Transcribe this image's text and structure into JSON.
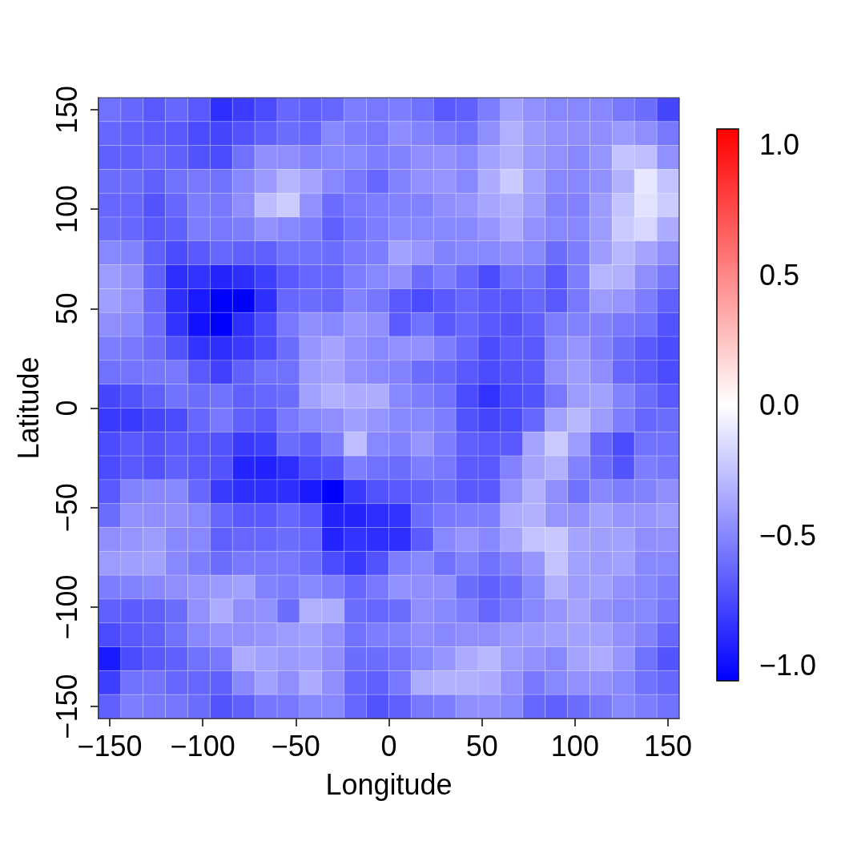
{
  "chart_data": {
    "type": "heatmap",
    "xlabel": "Longitude",
    "ylabel": "Latitude",
    "x": [
      -150,
      -138,
      -126,
      -114,
      -102,
      -90,
      -78,
      -66,
      -54,
      -42,
      -30,
      -18,
      -6,
      6,
      18,
      30,
      42,
      54,
      66,
      78,
      90,
      102,
      114,
      126,
      138,
      150
    ],
    "y": [
      150,
      138,
      126,
      114,
      102,
      90,
      78,
      66,
      54,
      42,
      30,
      18,
      6,
      -6,
      -18,
      -30,
      -42,
      -54,
      -66,
      -78,
      -90,
      -102,
      -114,
      -126,
      -138,
      -150
    ],
    "xlim": [
      -156,
      156
    ],
    "ylim": [
      -156,
      156
    ],
    "xticks": [
      {
        "value": -150,
        "label": "−150"
      },
      {
        "value": -100,
        "label": "−100"
      },
      {
        "value": -50,
        "label": "−50"
      },
      0,
      50,
      100,
      150
    ],
    "yticks": [
      {
        "value": -150,
        "label": "−150"
      },
      {
        "value": -100,
        "label": "−100"
      },
      {
        "value": -50,
        "label": "−50"
      },
      0,
      50,
      100,
      150
    ],
    "clim": [
      -1.06,
      1.06
    ],
    "cticks": [
      {
        "value": -1,
        "label": "−1.0"
      },
      {
        "value": -0.5,
        "label": "−0.5"
      },
      {
        "value": 0,
        "label": "0.0"
      },
      0.5,
      {
        "value": 1,
        "label": "1.0"
      }
    ],
    "cells": [
      [
        -0.59,
        -0.63,
        -0.69,
        -0.63,
        -0.69,
        -0.87,
        -0.81,
        -0.75,
        -0.63,
        -0.66,
        -0.63,
        -0.54,
        -0.56,
        -0.54,
        -0.59,
        -0.69,
        -0.66,
        -0.54,
        -0.39,
        -0.46,
        -0.5,
        -0.5,
        -0.5,
        -0.56,
        -0.61,
        -0.77
      ],
      [
        -0.63,
        -0.66,
        -0.68,
        -0.69,
        -0.75,
        -0.77,
        -0.72,
        -0.66,
        -0.61,
        -0.63,
        -0.5,
        -0.54,
        -0.56,
        -0.48,
        -0.52,
        -0.56,
        -0.59,
        -0.47,
        -0.33,
        -0.42,
        -0.46,
        -0.47,
        -0.47,
        -0.42,
        -0.47,
        -0.56
      ],
      [
        -0.66,
        -0.66,
        -0.63,
        -0.66,
        -0.72,
        -0.75,
        -0.59,
        -0.47,
        -0.47,
        -0.52,
        -0.5,
        -0.5,
        -0.54,
        -0.52,
        -0.47,
        -0.46,
        -0.5,
        -0.39,
        -0.33,
        -0.42,
        -0.46,
        -0.5,
        -0.44,
        -0.25,
        -0.27,
        -0.46
      ],
      [
        -0.61,
        -0.61,
        -0.66,
        -0.59,
        -0.56,
        -0.59,
        -0.5,
        -0.42,
        -0.31,
        -0.38,
        -0.5,
        -0.56,
        -0.63,
        -0.52,
        -0.46,
        -0.44,
        -0.5,
        -0.35,
        -0.22,
        -0.39,
        -0.5,
        -0.5,
        -0.46,
        -0.33,
        -0.1,
        -0.25
      ],
      [
        -0.63,
        -0.63,
        -0.71,
        -0.63,
        -0.54,
        -0.56,
        -0.47,
        -0.28,
        -0.21,
        -0.46,
        -0.61,
        -0.56,
        -0.54,
        -0.52,
        -0.52,
        -0.47,
        -0.44,
        -0.37,
        -0.33,
        -0.41,
        -0.52,
        -0.52,
        -0.41,
        -0.25,
        -0.12,
        -0.21
      ],
      [
        -0.61,
        -0.63,
        -0.69,
        -0.66,
        -0.54,
        -0.56,
        -0.54,
        -0.46,
        -0.5,
        -0.54,
        -0.66,
        -0.59,
        -0.54,
        -0.5,
        -0.5,
        -0.5,
        -0.5,
        -0.44,
        -0.35,
        -0.46,
        -0.5,
        -0.5,
        -0.41,
        -0.22,
        -0.17,
        -0.35
      ],
      [
        -0.5,
        -0.52,
        -0.66,
        -0.75,
        -0.69,
        -0.63,
        -0.66,
        -0.66,
        -0.59,
        -0.59,
        -0.61,
        -0.56,
        -0.54,
        -0.39,
        -0.44,
        -0.52,
        -0.5,
        -0.5,
        -0.47,
        -0.5,
        -0.61,
        -0.54,
        -0.41,
        -0.3,
        -0.38,
        -0.47
      ],
      [
        -0.41,
        -0.47,
        -0.66,
        -0.87,
        -0.85,
        -0.91,
        -0.87,
        -0.8,
        -0.69,
        -0.63,
        -0.63,
        -0.54,
        -0.5,
        -0.47,
        -0.61,
        -0.54,
        -0.63,
        -0.75,
        -0.59,
        -0.59,
        -0.69,
        -0.54,
        -0.31,
        -0.33,
        -0.47,
        -0.56
      ],
      [
        -0.4,
        -0.46,
        -0.63,
        -0.87,
        -0.95,
        -1.06,
        -1.06,
        -0.87,
        -0.63,
        -0.61,
        -0.63,
        -0.52,
        -0.57,
        -0.69,
        -0.75,
        -0.69,
        -0.63,
        -0.69,
        -0.69,
        -0.63,
        -0.69,
        -0.56,
        -0.41,
        -0.44,
        -0.54,
        -0.66
      ],
      [
        -0.47,
        -0.5,
        -0.61,
        -0.85,
        -0.99,
        -1.06,
        -0.87,
        -0.75,
        -0.56,
        -0.47,
        -0.5,
        -0.44,
        -0.47,
        -0.68,
        -0.59,
        -0.69,
        -0.63,
        -0.69,
        -0.71,
        -0.66,
        -0.54,
        -0.52,
        -0.52,
        -0.56,
        -0.59,
        -0.72
      ],
      [
        -0.54,
        -0.56,
        -0.61,
        -0.72,
        -0.85,
        -0.87,
        -0.82,
        -0.75,
        -0.61,
        -0.44,
        -0.38,
        -0.46,
        -0.5,
        -0.46,
        -0.46,
        -0.54,
        -0.63,
        -0.75,
        -0.68,
        -0.69,
        -0.5,
        -0.44,
        -0.52,
        -0.61,
        -0.69,
        -0.75
      ],
      [
        -0.59,
        -0.58,
        -0.57,
        -0.56,
        -0.69,
        -0.79,
        -0.66,
        -0.59,
        -0.59,
        -0.41,
        -0.38,
        -0.46,
        -0.5,
        -0.52,
        -0.61,
        -0.63,
        -0.69,
        -0.75,
        -0.71,
        -0.69,
        -0.47,
        -0.41,
        -0.47,
        -0.63,
        -0.68,
        -0.75
      ],
      [
        -0.77,
        -0.72,
        -0.66,
        -0.59,
        -0.61,
        -0.59,
        -0.66,
        -0.63,
        -0.61,
        -0.39,
        -0.33,
        -0.35,
        -0.34,
        -0.5,
        -0.54,
        -0.59,
        -0.75,
        -0.85,
        -0.75,
        -0.72,
        -0.56,
        -0.41,
        -0.39,
        -0.52,
        -0.61,
        -0.69
      ],
      [
        -0.82,
        -0.82,
        -0.77,
        -0.75,
        -0.63,
        -0.56,
        -0.66,
        -0.69,
        -0.56,
        -0.5,
        -0.47,
        -0.4,
        -0.44,
        -0.5,
        -0.5,
        -0.54,
        -0.72,
        -0.77,
        -0.75,
        -0.63,
        -0.39,
        -0.3,
        -0.41,
        -0.54,
        -0.63,
        -0.61
      ],
      [
        -0.75,
        -0.69,
        -0.72,
        -0.68,
        -0.69,
        -0.72,
        -0.82,
        -0.8,
        -0.61,
        -0.66,
        -0.54,
        -0.27,
        -0.5,
        -0.52,
        -0.44,
        -0.54,
        -0.66,
        -0.69,
        -0.69,
        -0.38,
        -0.22,
        -0.41,
        -0.63,
        -0.75,
        -0.59,
        -0.59
      ],
      [
        -0.75,
        -0.69,
        -0.72,
        -0.66,
        -0.69,
        -0.72,
        -0.91,
        -0.92,
        -0.87,
        -0.75,
        -0.71,
        -0.54,
        -0.59,
        -0.61,
        -0.54,
        -0.56,
        -0.68,
        -0.69,
        -0.52,
        -0.38,
        -0.33,
        -0.52,
        -0.61,
        -0.71,
        -0.54,
        -0.57
      ],
      [
        -0.69,
        -0.52,
        -0.5,
        -0.5,
        -0.63,
        -0.82,
        -0.87,
        -0.87,
        -0.87,
        -0.95,
        -1.06,
        -0.82,
        -0.72,
        -0.69,
        -0.66,
        -0.61,
        -0.69,
        -0.69,
        -0.46,
        -0.33,
        -0.47,
        -0.59,
        -0.5,
        -0.54,
        -0.52,
        -0.47
      ],
      [
        -0.61,
        -0.46,
        -0.47,
        -0.47,
        -0.5,
        -0.63,
        -0.69,
        -0.69,
        -0.63,
        -0.69,
        -0.92,
        -0.91,
        -0.87,
        -0.85,
        -0.61,
        -0.56,
        -0.54,
        -0.54,
        -0.35,
        -0.33,
        -0.44,
        -0.46,
        -0.39,
        -0.44,
        -0.44,
        -0.41
      ],
      [
        -0.47,
        -0.44,
        -0.41,
        -0.5,
        -0.5,
        -0.66,
        -0.63,
        -0.63,
        -0.61,
        -0.63,
        -0.91,
        -0.85,
        -0.87,
        -0.87,
        -0.68,
        -0.5,
        -0.44,
        -0.5,
        -0.38,
        -0.25,
        -0.23,
        -0.38,
        -0.4,
        -0.39,
        -0.47,
        -0.46
      ],
      [
        -0.41,
        -0.4,
        -0.39,
        -0.5,
        -0.54,
        -0.61,
        -0.56,
        -0.56,
        -0.56,
        -0.61,
        -0.75,
        -0.82,
        -0.72,
        -0.54,
        -0.5,
        -0.59,
        -0.52,
        -0.59,
        -0.52,
        -0.44,
        -0.25,
        -0.39,
        -0.41,
        -0.39,
        -0.5,
        -0.5
      ],
      [
        -0.54,
        -0.52,
        -0.5,
        -0.47,
        -0.44,
        -0.42,
        -0.39,
        -0.52,
        -0.54,
        -0.5,
        -0.54,
        -0.63,
        -0.56,
        -0.46,
        -0.47,
        -0.47,
        -0.61,
        -0.66,
        -0.61,
        -0.5,
        -0.33,
        -0.41,
        -0.39,
        -0.46,
        -0.5,
        -0.54
      ],
      [
        -0.66,
        -0.68,
        -0.66,
        -0.61,
        -0.46,
        -0.35,
        -0.47,
        -0.46,
        -0.61,
        -0.33,
        -0.34,
        -0.61,
        -0.63,
        -0.61,
        -0.47,
        -0.5,
        -0.54,
        -0.63,
        -0.56,
        -0.5,
        -0.44,
        -0.38,
        -0.46,
        -0.5,
        -0.5,
        -0.57
      ],
      [
        -0.75,
        -0.69,
        -0.66,
        -0.59,
        -0.5,
        -0.46,
        -0.46,
        -0.44,
        -0.41,
        -0.39,
        -0.46,
        -0.59,
        -0.54,
        -0.52,
        -0.47,
        -0.5,
        -0.47,
        -0.47,
        -0.42,
        -0.42,
        -0.4,
        -0.39,
        -0.39,
        -0.46,
        -0.52,
        -0.63
      ],
      [
        -0.95,
        -0.75,
        -0.69,
        -0.66,
        -0.59,
        -0.56,
        -0.35,
        -0.39,
        -0.42,
        -0.4,
        -0.47,
        -0.61,
        -0.61,
        -0.58,
        -0.5,
        -0.44,
        -0.35,
        -0.3,
        -0.41,
        -0.46,
        -0.5,
        -0.38,
        -0.35,
        -0.44,
        -0.59,
        -0.71
      ],
      [
        -0.8,
        -0.59,
        -0.58,
        -0.63,
        -0.63,
        -0.66,
        -0.5,
        -0.39,
        -0.47,
        -0.35,
        -0.47,
        -0.63,
        -0.66,
        -0.56,
        -0.35,
        -0.33,
        -0.33,
        -0.35,
        -0.46,
        -0.56,
        -0.5,
        -0.46,
        -0.46,
        -0.5,
        -0.59,
        -0.63
      ],
      [
        -0.66,
        -0.54,
        -0.56,
        -0.57,
        -0.61,
        -0.71,
        -0.66,
        -0.57,
        -0.56,
        -0.5,
        -0.5,
        -0.63,
        -0.72,
        -0.66,
        -0.56,
        -0.54,
        -0.47,
        -0.46,
        -0.5,
        -0.63,
        -0.66,
        -0.61,
        -0.56,
        -0.5,
        -0.54,
        -0.59
      ]
    ]
  }
}
